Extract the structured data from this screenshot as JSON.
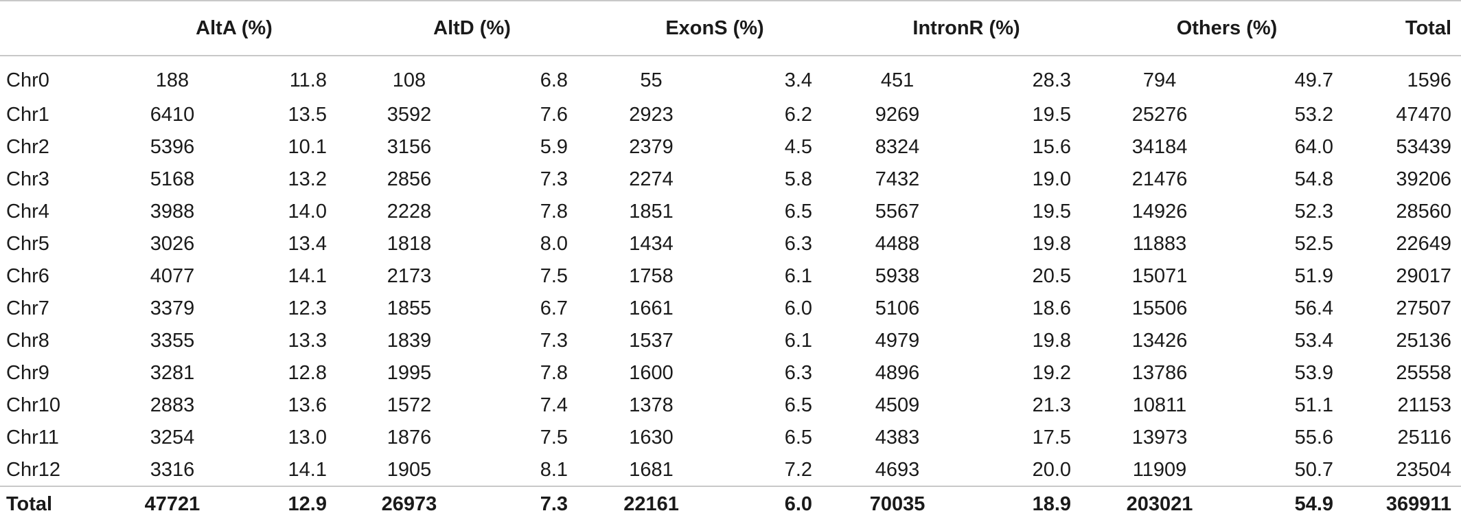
{
  "table": {
    "header": {
      "blank": "",
      "groups": [
        "AltA (%)",
        "AltD (%)",
        "ExonS (%)",
        "IntronR (%)",
        "Others (%)"
      ],
      "total": "Total"
    },
    "rows": [
      {
        "label": "Chr0",
        "cells": [
          "188",
          "11.8",
          "108",
          "6.8",
          "55",
          "3.4",
          "451",
          "28.3",
          "794",
          "49.7"
        ],
        "total": "1596"
      },
      {
        "label": "Chr1",
        "cells": [
          "6410",
          "13.5",
          "3592",
          "7.6",
          "2923",
          "6.2",
          "9269",
          "19.5",
          "25276",
          "53.2"
        ],
        "total": "47470"
      },
      {
        "label": "Chr2",
        "cells": [
          "5396",
          "10.1",
          "3156",
          "5.9",
          "2379",
          "4.5",
          "8324",
          "15.6",
          "34184",
          "64.0"
        ],
        "total": "53439"
      },
      {
        "label": "Chr3",
        "cells": [
          "5168",
          "13.2",
          "2856",
          "7.3",
          "2274",
          "5.8",
          "7432",
          "19.0",
          "21476",
          "54.8"
        ],
        "total": "39206"
      },
      {
        "label": "Chr4",
        "cells": [
          "3988",
          "14.0",
          "2228",
          "7.8",
          "1851",
          "6.5",
          "5567",
          "19.5",
          "14926",
          "52.3"
        ],
        "total": "28560"
      },
      {
        "label": "Chr5",
        "cells": [
          "3026",
          "13.4",
          "1818",
          "8.0",
          "1434",
          "6.3",
          "4488",
          "19.8",
          "11883",
          "52.5"
        ],
        "total": "22649"
      },
      {
        "label": "Chr6",
        "cells": [
          "4077",
          "14.1",
          "2173",
          "7.5",
          "1758",
          "6.1",
          "5938",
          "20.5",
          "15071",
          "51.9"
        ],
        "total": "29017"
      },
      {
        "label": "Chr7",
        "cells": [
          "3379",
          "12.3",
          "1855",
          "6.7",
          "1661",
          "6.0",
          "5106",
          "18.6",
          "15506",
          "56.4"
        ],
        "total": "27507"
      },
      {
        "label": "Chr8",
        "cells": [
          "3355",
          "13.3",
          "1839",
          "7.3",
          "1537",
          "6.1",
          "4979",
          "19.8",
          "13426",
          "53.4"
        ],
        "total": "25136"
      },
      {
        "label": "Chr9",
        "cells": [
          "3281",
          "12.8",
          "1995",
          "7.8",
          "1600",
          "6.3",
          "4896",
          "19.2",
          "13786",
          "53.9"
        ],
        "total": "25558"
      },
      {
        "label": "Chr10",
        "cells": [
          "2883",
          "13.6",
          "1572",
          "7.4",
          "1378",
          "6.5",
          "4509",
          "21.3",
          "10811",
          "51.1"
        ],
        "total": "21153"
      },
      {
        "label": "Chr11",
        "cells": [
          "3254",
          "13.0",
          "1876",
          "7.5",
          "1630",
          "6.5",
          "4383",
          "17.5",
          "13973",
          "55.6"
        ],
        "total": "25116"
      },
      {
        "label": "Chr12",
        "cells": [
          "3316",
          "14.1",
          "1905",
          "8.1",
          "1681",
          "7.2",
          "4693",
          "20.0",
          "11909",
          "50.7"
        ],
        "total": "23504"
      }
    ],
    "footer": {
      "label": "Total",
      "cells": [
        "47721",
        "12.9",
        "26973",
        "7.3",
        "22161",
        "6.0",
        "70035",
        "18.9",
        "203021",
        "54.9"
      ],
      "total": "369911"
    }
  }
}
